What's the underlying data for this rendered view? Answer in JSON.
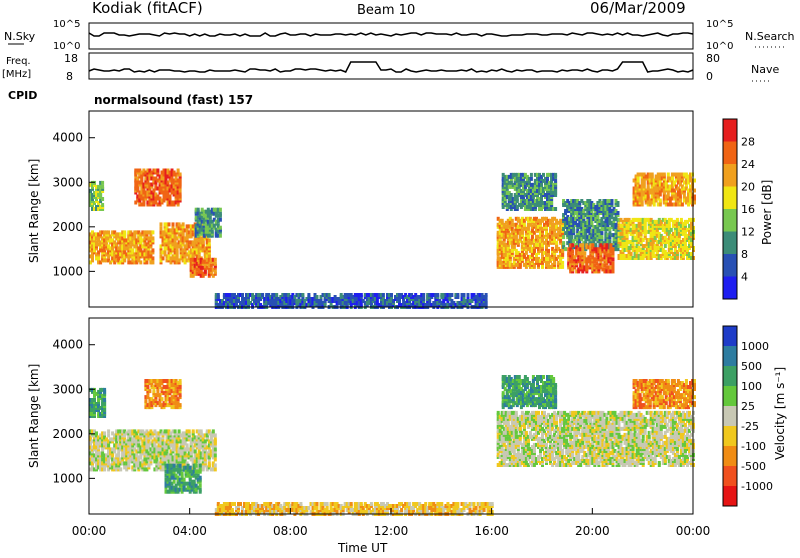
{
  "header": {
    "title": "Kodiak (fitACF)",
    "beam": "Beam 10",
    "date": "06/Mar/2009"
  },
  "summary_panels": {
    "nsky_label": "N.Sky",
    "nsky_ticks": [
      "10^5",
      "10^0"
    ],
    "nsearch_label": "N.Search",
    "nsearch_ticks": [
      "10^5",
      "10^0"
    ],
    "freq_label_line1": "Freq.",
    "freq_label_line2": "[MHz]",
    "freq_ticks": [
      "18",
      "8"
    ],
    "nave_label": "Nave",
    "nave_ticks": [
      "80",
      "0"
    ],
    "cpid_label": "CPID",
    "cpid_value": "normalsound (fast) 157"
  },
  "chart_data": [
    {
      "type": "heatmap",
      "name": "power-panel",
      "ylabel": "Slant Range [km]",
      "ylim": [
        200,
        4600
      ],
      "yticks": [
        "1000",
        "2000",
        "3000",
        "4000"
      ],
      "xlim_hours": [
        0,
        24
      ],
      "colorbar_label": "Power [dB]",
      "colorbar_ticks": [
        "4",
        "8",
        "12",
        "16",
        "20",
        "24",
        "28"
      ],
      "colorbar_colors": [
        "#1e1ef0",
        "#2850b4",
        "#3c8c78",
        "#78c850",
        "#f0e614",
        "#f0a01e",
        "#f06414",
        "#e61e1e"
      ],
      "regions": [
        {
          "t0": 0.0,
          "t1": 0.5,
          "r0": 2400,
          "r1": 3000,
          "value": 12
        },
        {
          "t0": 0.0,
          "t1": 2.5,
          "r0": 1200,
          "r1": 1900,
          "value": 22
        },
        {
          "t0": 1.8,
          "t1": 3.6,
          "r0": 2500,
          "r1": 3300,
          "value": 24
        },
        {
          "t0": 2.8,
          "t1": 4.8,
          "r0": 1200,
          "r1": 2100,
          "value": 20
        },
        {
          "t0": 4.0,
          "t1": 5.0,
          "r0": 900,
          "r1": 1300,
          "value": 26
        },
        {
          "t0": 4.2,
          "t1": 5.2,
          "r0": 1800,
          "r1": 2400,
          "value": 8
        },
        {
          "t0": 5.0,
          "t1": 15.8,
          "r0": 200,
          "r1": 500,
          "value": 6
        },
        {
          "t0": 16.2,
          "t1": 18.8,
          "r0": 1100,
          "r1": 2200,
          "value": 22
        },
        {
          "t0": 16.4,
          "t1": 18.5,
          "r0": 2400,
          "r1": 3200,
          "value": 10
        },
        {
          "t0": 18.8,
          "t1": 21.0,
          "r0": 1500,
          "r1": 2600,
          "value": 10
        },
        {
          "t0": 19.0,
          "t1": 20.8,
          "r0": 1000,
          "r1": 1600,
          "value": 24
        },
        {
          "t0": 21.0,
          "t1": 24.0,
          "r0": 1300,
          "r1": 2200,
          "value": 18
        },
        {
          "t0": 21.6,
          "t1": 24.0,
          "r0": 2500,
          "r1": 3200,
          "value": 20
        }
      ]
    },
    {
      "type": "heatmap",
      "name": "velocity-panel",
      "ylabel": "Slant Range [km]",
      "ylim": [
        200,
        4600
      ],
      "yticks": [
        "1000",
        "2000",
        "3000",
        "4000"
      ],
      "xlim_hours": [
        0,
        24
      ],
      "colorbar_label": "Velocity [m s⁻¹]",
      "colorbar_ticks": [
        "1000",
        "500",
        "100",
        "25",
        "-25",
        "-100",
        "-500",
        "-1000"
      ],
      "colorbar_colors": [
        "#1e3cc8",
        "#2d7ca0",
        "#3ca064",
        "#64c83c",
        "#c8c8b4",
        "#f0c81e",
        "#f08c14",
        "#f0501e",
        "#e61414"
      ],
      "regions": [
        {
          "t0": 0.0,
          "t1": 0.6,
          "r0": 2400,
          "r1": 3000,
          "value": 100
        },
        {
          "t0": 0.0,
          "t1": 5.0,
          "r0": 1200,
          "r1": 2100,
          "value": 0
        },
        {
          "t0": 2.2,
          "t1": 3.6,
          "r0": 2600,
          "r1": 3200,
          "value": -500
        },
        {
          "t0": 3.0,
          "t1": 4.4,
          "r0": 700,
          "r1": 1300,
          "value": 100
        },
        {
          "t0": 5.0,
          "t1": 16.0,
          "r0": 200,
          "r1": 450,
          "value": -100
        },
        {
          "t0": 16.2,
          "t1": 24.0,
          "r0": 1300,
          "r1": 2500,
          "value": 0
        },
        {
          "t0": 16.4,
          "t1": 18.5,
          "r0": 2600,
          "r1": 3300,
          "value": 100
        },
        {
          "t0": 21.6,
          "t1": 24.0,
          "r0": 2600,
          "r1": 3200,
          "value": -500
        }
      ]
    }
  ],
  "x_axis": {
    "ticks": [
      "00:00",
      "04:00",
      "08:00",
      "12:00",
      "16:00",
      "20:00",
      "00:00"
    ],
    "label": "Time UT"
  }
}
